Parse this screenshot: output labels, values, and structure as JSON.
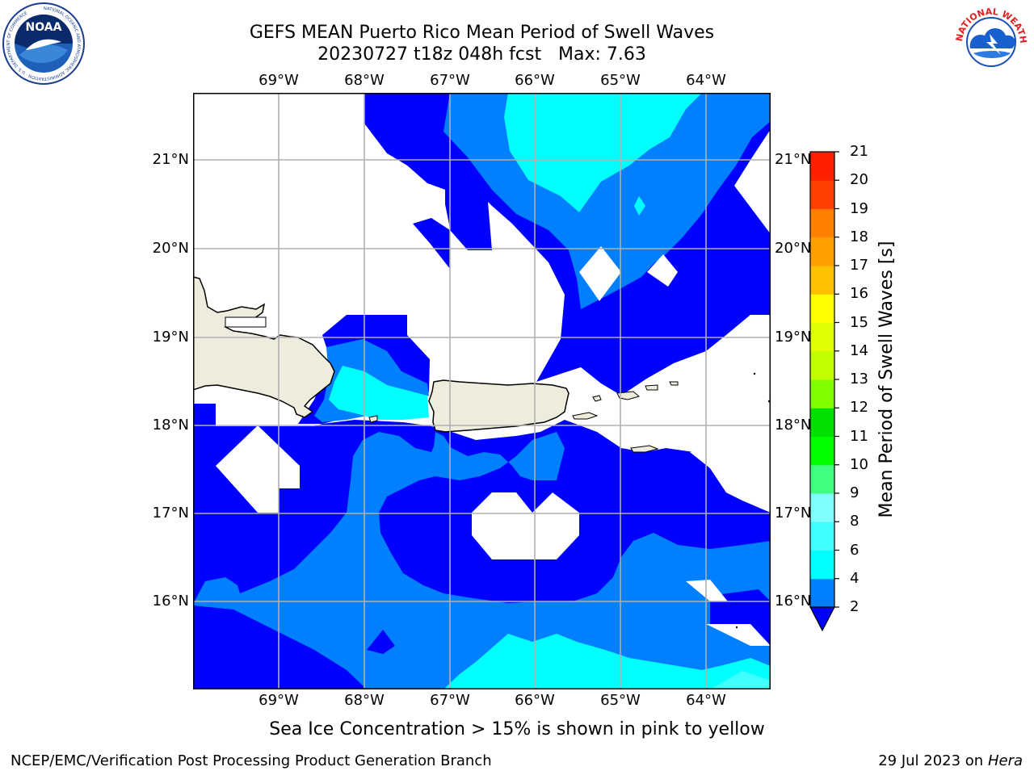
{
  "header": {
    "title_line1": "GEFS MEAN Puerto Rico Mean Period of Swell Waves",
    "title_line2": "20230727 t18z 048h fcst   Max: 7.63"
  },
  "map": {
    "x_ticks": [
      "69°W",
      "68°W",
      "67°W",
      "66°W",
      "65°W",
      "64°W"
    ],
    "y_ticks": [
      "21°N",
      "20°N",
      "19°N",
      "18°N",
      "17°N",
      "16°N"
    ],
    "grid": true
  },
  "colorbar": {
    "label": "Mean Period of Swell Waves [s]",
    "ticks": [
      "2",
      "4",
      "6",
      "8",
      "9",
      "10",
      "11",
      "12",
      "13",
      "14",
      "15",
      "16",
      "17",
      "18",
      "19",
      "20",
      "21"
    ],
    "colors": [
      "#0000ff",
      "#0080ff",
      "#00ffff",
      "#40ffff",
      "#80ffff",
      "#40ff80",
      "#00ff00",
      "#00e000",
      "#80ff00",
      "#c0ff00",
      "#e0ff00",
      "#ffff00",
      "#ffc000",
      "#ffa000",
      "#ff8000",
      "#ff4000",
      "#ff2000",
      "#ff0000"
    ],
    "under_color": "#0000ff"
  },
  "notes": {
    "ice": "Sea Ice Concentration > 15% is shown in pink to yellow"
  },
  "footer": {
    "left": "NCEP/EMC/Verification Post Processing Product Generation Branch",
    "right_prefix": "29 Jul 2023 on ",
    "right_machine": "Hera"
  },
  "logos": {
    "noaa_text": "NOAA",
    "noaa_ring": "NATIONAL OCEANIC AND ATMOSPHERIC ADMINISTRATION · U.S. DEPARTMENT OF COMMERCE",
    "nws_ring": "NATIONAL WEATHER SERVICE"
  },
  "colors": {
    "land": "#eeecdc",
    "level_2_4": "#0000ff",
    "level_4_6": "#0080ff",
    "level_6_8": "#00ffff",
    "grid": "#b0b0b0"
  }
}
